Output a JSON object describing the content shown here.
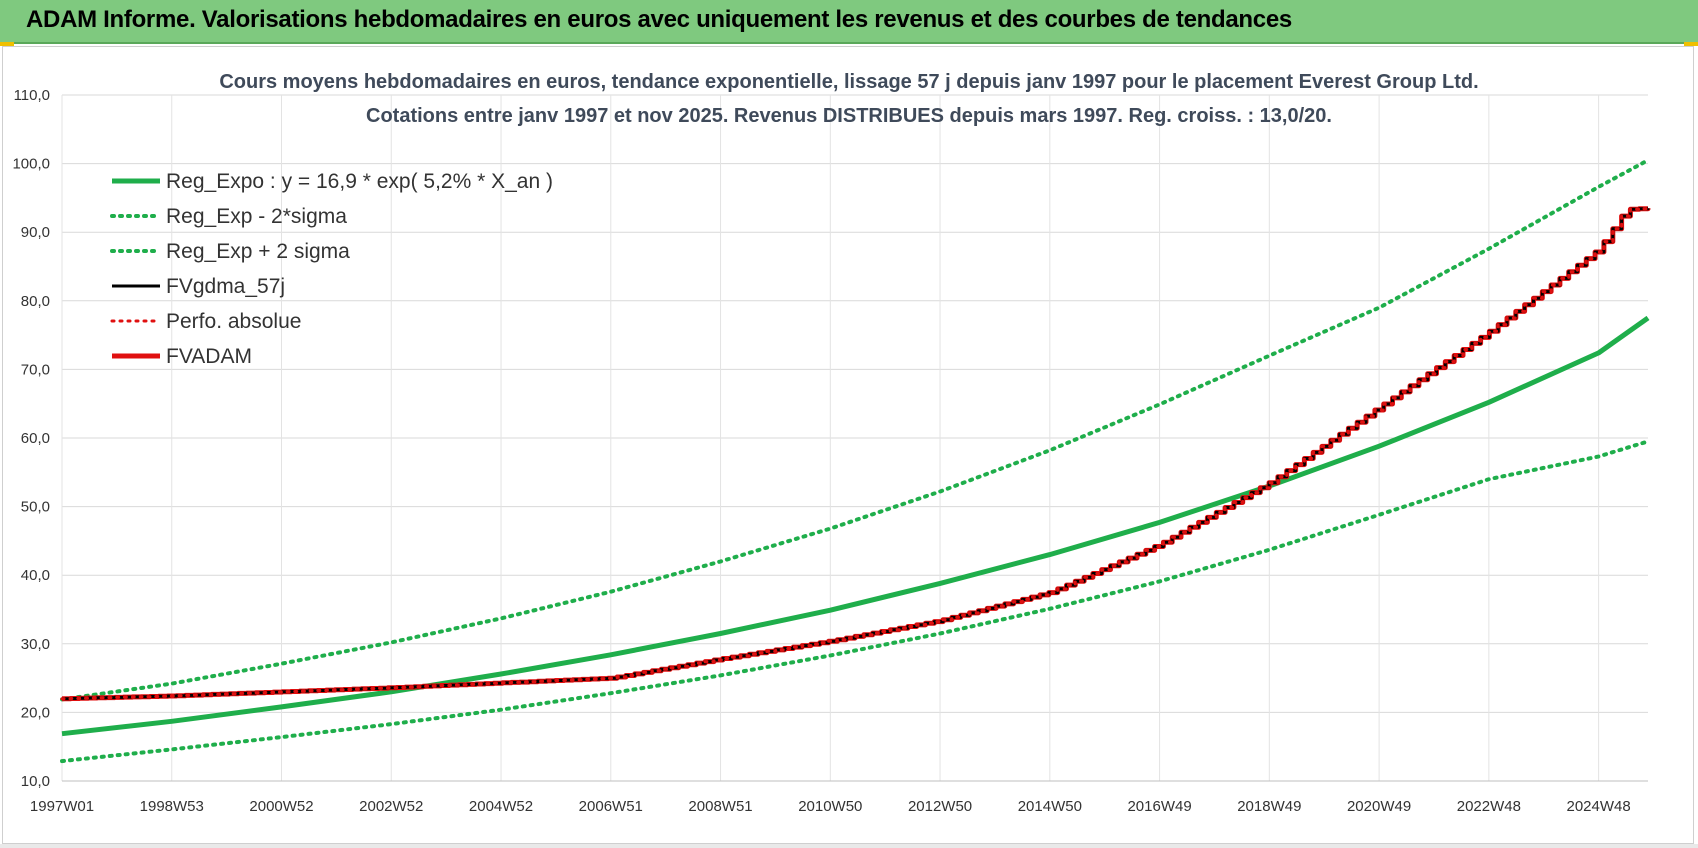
{
  "header": {
    "title": "ADAM Informe. Valorisations hebdomadaires en euros avec uniquement les revenus et des courbes de tendances",
    "bg_color": "#7fc97f"
  },
  "chart_data": {
    "type": "line",
    "title_line1": "Cours moyens hebdomadaires en euros, tendance exponentielle, lissage 57 j depuis janv 1997 pour le placement Everest Group Ltd.",
    "title_line2": "Cotations entre janv 1997 et nov 2025. Revenus DISTRIBUES depuis mars 1997. Reg. croiss. : 13,0/20.",
    "xlabel": "",
    "ylabel": "",
    "ylim": [
      10,
      110
    ],
    "xlim": [
      1997.0,
      2025.9
    ],
    "y_ticks": [
      "10,0",
      "20,0",
      "30,0",
      "40,0",
      "50,0",
      "60,0",
      "70,0",
      "80,0",
      "90,0",
      "100,0",
      "110,0"
    ],
    "x_ticks": [
      {
        "label": "1997W01",
        "x": 1997.0
      },
      {
        "label": "1998W53",
        "x": 1999.0
      },
      {
        "label": "2000W52",
        "x": 2001.0
      },
      {
        "label": "2002W52",
        "x": 2003.0
      },
      {
        "label": "2004W52",
        "x": 2005.0
      },
      {
        "label": "2006W51",
        "x": 2007.0
      },
      {
        "label": "2008W51",
        "x": 2009.0
      },
      {
        "label": "2010W50",
        "x": 2011.0
      },
      {
        "label": "2012W50",
        "x": 2013.0
      },
      {
        "label": "2014W50",
        "x": 2015.0
      },
      {
        "label": "2016W49",
        "x": 2017.0
      },
      {
        "label": "2018W49",
        "x": 2019.0
      },
      {
        "label": "2020W49",
        "x": 2021.0
      },
      {
        "label": "2022W48",
        "x": 2023.0
      },
      {
        "label": "2024W48",
        "x": 2025.0
      }
    ],
    "grid": true,
    "legend_position": "top-left",
    "series": [
      {
        "name": "Reg_Expo : y = 16,9 * exp( 5,2% *  X_an )",
        "color": "#1fae4b",
        "style": "solid",
        "width": 5,
        "x": [
          1997,
          1999,
          2001,
          2003,
          2005,
          2007,
          2009,
          2011,
          2013,
          2015,
          2017,
          2019,
          2021,
          2023,
          2025,
          2025.9
        ],
        "y": [
          16.9,
          18.7,
          20.8,
          23.0,
          25.6,
          28.4,
          31.5,
          34.9,
          38.8,
          43.0,
          47.7,
          53.0,
          58.8,
          65.2,
          72.4,
          77.5
        ]
      },
      {
        "name": "Reg_Exp - 2*sigma",
        "color": "#1fae4b",
        "style": "dotted",
        "width": 4,
        "x": [
          1997,
          1999,
          2001,
          2003,
          2005,
          2007,
          2009,
          2011,
          2013,
          2015,
          2017,
          2019,
          2021,
          2023,
          2025,
          2025.9
        ],
        "y": [
          12.9,
          14.6,
          16.4,
          18.3,
          20.4,
          22.8,
          25.4,
          28.3,
          31.5,
          35.1,
          39.1,
          43.7,
          48.8,
          54.0,
          57.3,
          59.5
        ]
      },
      {
        "name": "Reg_Exp + 2 sigma",
        "color": "#1fae4b",
        "style": "dotted",
        "width": 4,
        "x": [
          1997,
          1999,
          2001,
          2003,
          2005,
          2007,
          2009,
          2011,
          2013,
          2015,
          2017,
          2019,
          2021,
          2023,
          2025,
          2025.9
        ],
        "y": [
          21.9,
          24.2,
          27.1,
          30.2,
          33.7,
          37.6,
          42.0,
          46.8,
          52.2,
          58.2,
          64.9,
          72.0,
          79.0,
          87.6,
          96.6,
          100.5
        ]
      },
      {
        "name": "FVgdma_57j",
        "color": "#000000",
        "style": "solid",
        "width": 3,
        "x": [
          1997,
          1999,
          2001,
          2003,
          2005,
          2007,
          2009,
          2011,
          2013,
          2015,
          2017,
          2019,
          2021,
          2023,
          2025,
          2025.5,
          2025.9
        ],
        "y": [
          22.0,
          22.4,
          23.0,
          23.6,
          24.3,
          25.0,
          27.8,
          30.4,
          33.4,
          37.5,
          44.5,
          53.5,
          64.5,
          75.5,
          87.5,
          93.3,
          93.5
        ]
      },
      {
        "name": "Perfo. absolue",
        "color": "#e01010",
        "style": "dotted",
        "width": 3,
        "x": [
          1997,
          1999,
          2001,
          2003,
          2005,
          2007,
          2009,
          2011,
          2013,
          2015,
          2017,
          2019,
          2021,
          2023,
          2025,
          2025.5,
          2025.9
        ],
        "y": [
          22.0,
          22.4,
          23.0,
          23.6,
          24.3,
          25.0,
          27.8,
          30.4,
          33.4,
          37.5,
          44.5,
          53.5,
          64.5,
          75.5,
          87.5,
          93.3,
          93.5
        ]
      },
      {
        "name": "FVADAM",
        "color": "#e01010",
        "style": "solid",
        "width": 5,
        "x": [
          1997,
          1999,
          2001,
          2003,
          2005,
          2007,
          2009,
          2011,
          2013,
          2015,
          2017,
          2019,
          2021,
          2023,
          2025,
          2025.5,
          2025.9
        ],
        "y": [
          22.0,
          22.4,
          23.0,
          23.6,
          24.3,
          25.0,
          27.8,
          30.4,
          33.4,
          37.5,
          44.5,
          53.5,
          64.5,
          75.5,
          87.5,
          93.3,
          93.5
        ]
      }
    ]
  }
}
